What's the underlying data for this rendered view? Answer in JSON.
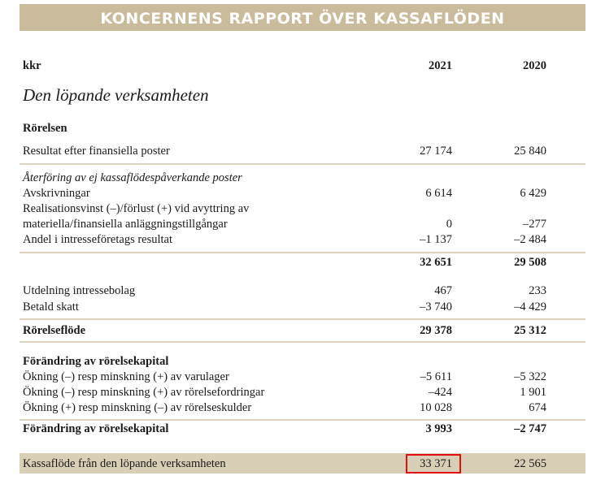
{
  "header": {
    "title": "KONCERNENS RAPPORT ÖVER KASSAFLÖDEN"
  },
  "columns": {
    "unit": "kkr",
    "years": [
      "2021",
      "2020"
    ]
  },
  "section_title": "Den löpande verksamheten",
  "rows": [
    [
      "Rörelsen",
      null,
      null
    ],
    [
      "Resultat efter finansiella poster",
      "27 174",
      "25 840"
    ],
    [
      "Återföring av ej kassaflödespåverkande poster",
      null,
      null
    ],
    [
      "Avskrivningar",
      "6 614",
      "6 429"
    ],
    [
      "Realisationsvinst (–)/förlust (+) vid avyttring av",
      null,
      null
    ],
    [
      "materiella/finansiella anläggningstillgångar",
      "0",
      "–277"
    ],
    [
      "Andel i intresseföretags resultat",
      "–1 137",
      "–2 484"
    ],
    [
      null,
      "32 651",
      "29 508"
    ],
    [
      "Utdelning intressebolag",
      "467",
      "233"
    ],
    [
      "Betald skatt",
      "–3 740",
      "–4 429"
    ],
    [
      "Rörelseflöde",
      "29 378",
      "25 312"
    ],
    [
      "Förändring av rörelsekapital",
      null,
      null
    ],
    [
      "Ökning (–) resp minskning (+) av varulager",
      "–5 611",
      "–5 322"
    ],
    [
      "Ökning (–) resp minskning (+) av rörelsefordringar",
      "–424",
      "1 901"
    ],
    [
      "Ökning (+) resp minskning (–) av rörelseskulder",
      "10 028",
      "674"
    ],
    [
      "Förändring av rörelsekapital",
      "3 993",
      "–2 747"
    ],
    [
      "Kassaflöde från den löpande verksamheten",
      "33 371",
      "22 565"
    ]
  ]
}
